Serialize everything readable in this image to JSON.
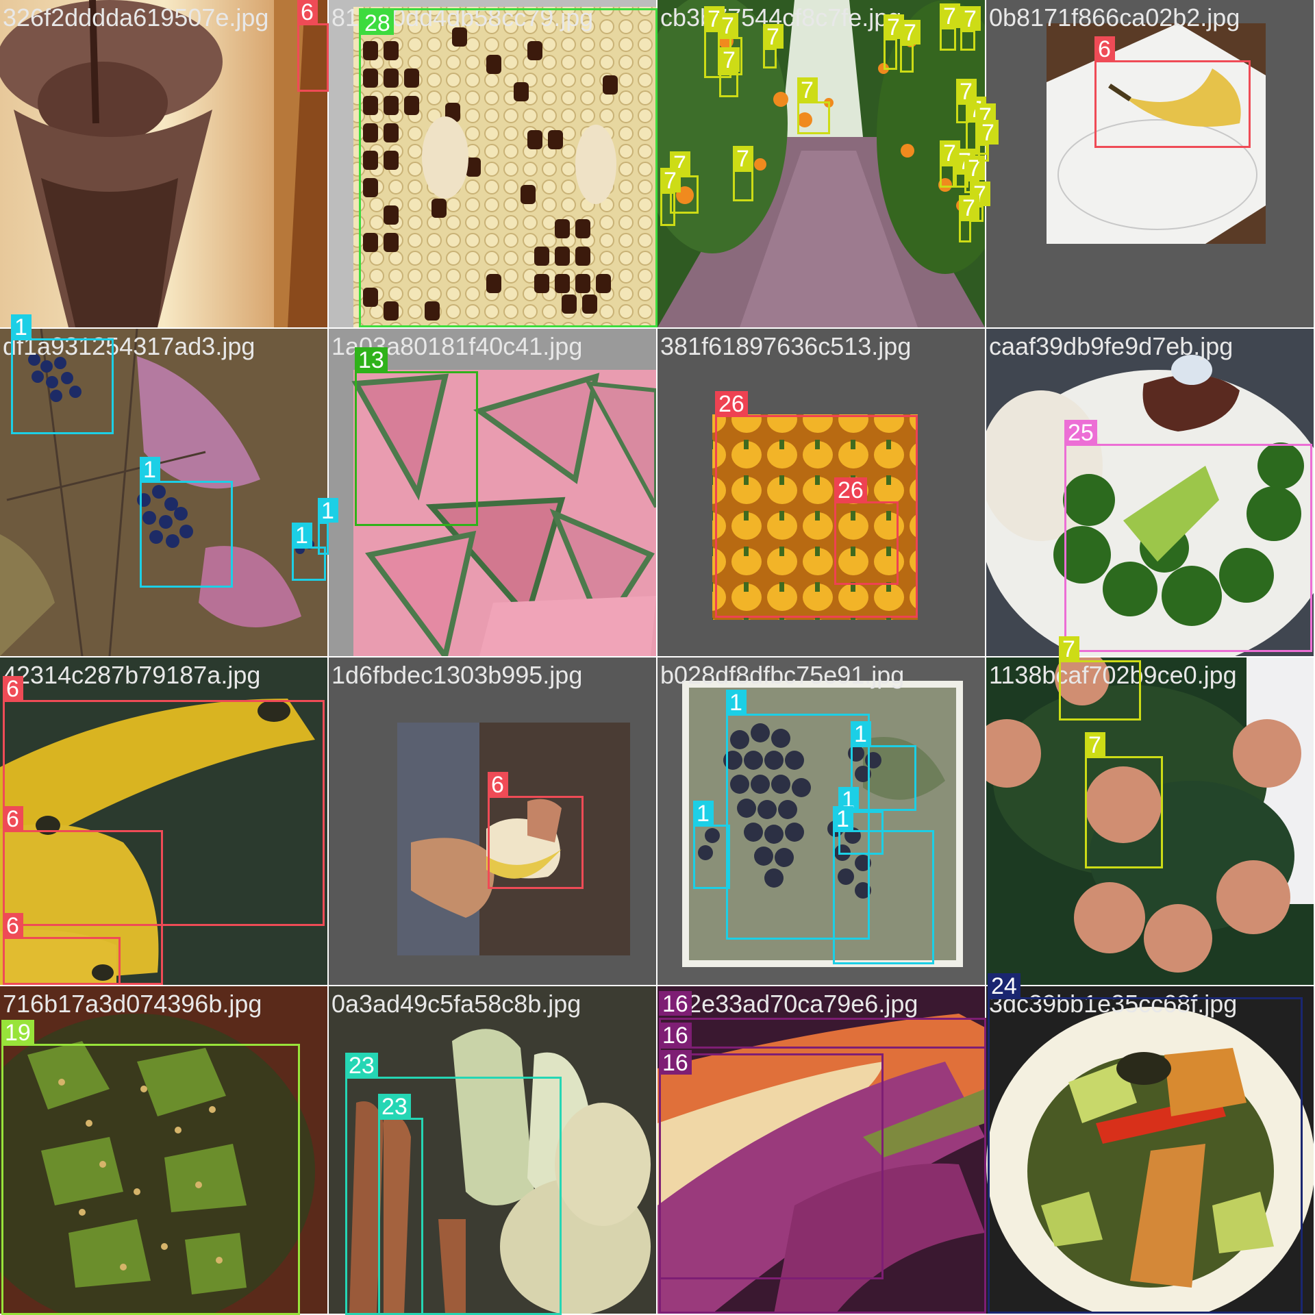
{
  "mosaic": {
    "palette": {
      "1": "#1ccfe6",
      "6": "#ef4b56",
      "7": "#cddc16",
      "13": "#2fb21a",
      "16": "#7e1e74",
      "19": "#98e33a",
      "23": "#25d6b4",
      "24": "#1a2670",
      "25": "#ec6ed5",
      "26": "#ee4252",
      "28": "#3ddb3e"
    },
    "tiles": [
      {
        "filename": "326f2dddda619507e.jpg",
        "scene": "chocolate-milkshake",
        "labels": [
          "6"
        ]
      },
      {
        "filename": "81c2f0dd4db58cc79.jpg",
        "scene": "honeycomb",
        "labels": [
          "28"
        ]
      },
      {
        "filename": "cb3b77544cf8c7fe.jpg",
        "scene": "orange-orchard",
        "labels": [
          "7",
          "7",
          "7",
          "7",
          "7",
          "7",
          "7",
          "7",
          "7",
          "7",
          "7",
          "7",
          "7",
          "7",
          "7",
          "7",
          "7",
          "7",
          "7",
          "7",
          "7"
        ]
      },
      {
        "filename": "0b8171f866ca02b2.jpg",
        "scene": "banana-on-plate",
        "labels": [
          "6"
        ]
      },
      {
        "filename": "df1a931254317ad3.jpg",
        "scene": "blueberry-bush",
        "labels": [
          "1",
          "1",
          "1",
          "1"
        ]
      },
      {
        "filename": "1a03a80181f40c41.jpg",
        "scene": "watermelon-slices",
        "labels": [
          "13"
        ]
      },
      {
        "filename": "381f61897636c513.jpg",
        "scene": "yellow-peppers",
        "labels": [
          "26",
          "26"
        ]
      },
      {
        "filename": "caaf39db9fe9d7eb.jpg",
        "scene": "steak-broccoli-plate",
        "labels": [
          "25"
        ]
      },
      {
        "filename": "42314c287b79187a.jpg",
        "scene": "bananas-closeup",
        "labels": [
          "6",
          "6",
          "6"
        ]
      },
      {
        "filename": "1d6fbdec1303b995.jpg",
        "scene": "hand-holding-banana",
        "labels": [
          "6"
        ]
      },
      {
        "filename": "b028df8dfbc75e91.jpg",
        "scene": "grape-vine",
        "labels": [
          "1",
          "1",
          "1",
          "1",
          "1"
        ]
      },
      {
        "filename": "1138bcaf702b9ce0.jpg",
        "scene": "orange-tree",
        "labels": [
          "7",
          "7"
        ]
      },
      {
        "filename": "716b17a3d074396b.jpg",
        "scene": "greens-with-nuts",
        "labels": [
          "19"
        ]
      },
      {
        "filename": "0a3ad49c5fa58c8b.jpg",
        "scene": "root-vegetables",
        "labels": [
          "23",
          "23"
        ]
      },
      {
        "filename": "292e33ad70ca79e6.jpg",
        "scene": "purple-carrots",
        "labels": [
          "16",
          "16",
          "16"
        ]
      },
      {
        "filename": "3dc39bb1e35cc68f.jpg",
        "scene": "salad-with-croutons",
        "labels": [
          "24"
        ]
      }
    ]
  }
}
